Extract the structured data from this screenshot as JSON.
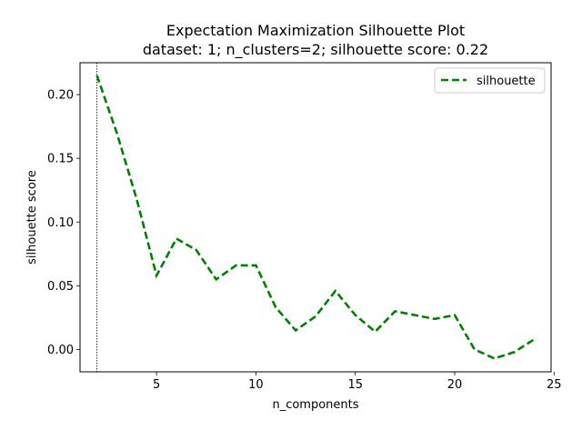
{
  "chart_data": {
    "type": "line",
    "title": "Expectation Maximization Silhouette Plot",
    "subtitle": "dataset: 1; n_clusters=2; silhouette score: 0.22",
    "xlabel": "n_components",
    "ylabel": "silhouette score",
    "xlim": [
      1.15,
      24.85
    ],
    "ylim": [
      -0.0175,
      0.225
    ],
    "xticks": [
      5,
      10,
      15,
      20,
      25
    ],
    "xtick_labels": [
      "5",
      "10",
      "15",
      "20",
      "25"
    ],
    "yticks": [
      0.0,
      0.05,
      0.1,
      0.15,
      0.2
    ],
    "ytick_labels": [
      "0.00",
      "0.05",
      "0.10",
      "0.15",
      "0.20"
    ],
    "grid": false,
    "legend_position": "top-right",
    "vline_x": 2,
    "series": [
      {
        "name": "silhouette",
        "color": "#008000",
        "linestyle": "dashed",
        "x": [
          2,
          3,
          4,
          5,
          6,
          7,
          8,
          9,
          10,
          11,
          12,
          13,
          14,
          15,
          16,
          17,
          18,
          19,
          20,
          21,
          22,
          23,
          24
        ],
        "y": [
          0.215,
          0.17,
          0.118,
          0.058,
          0.087,
          0.078,
          0.055,
          0.066,
          0.066,
          0.033,
          0.015,
          0.026,
          0.046,
          0.027,
          0.014,
          0.03,
          0.027,
          0.024,
          0.027,
          0.0,
          -0.007,
          -0.002,
          0.008
        ]
      }
    ]
  }
}
